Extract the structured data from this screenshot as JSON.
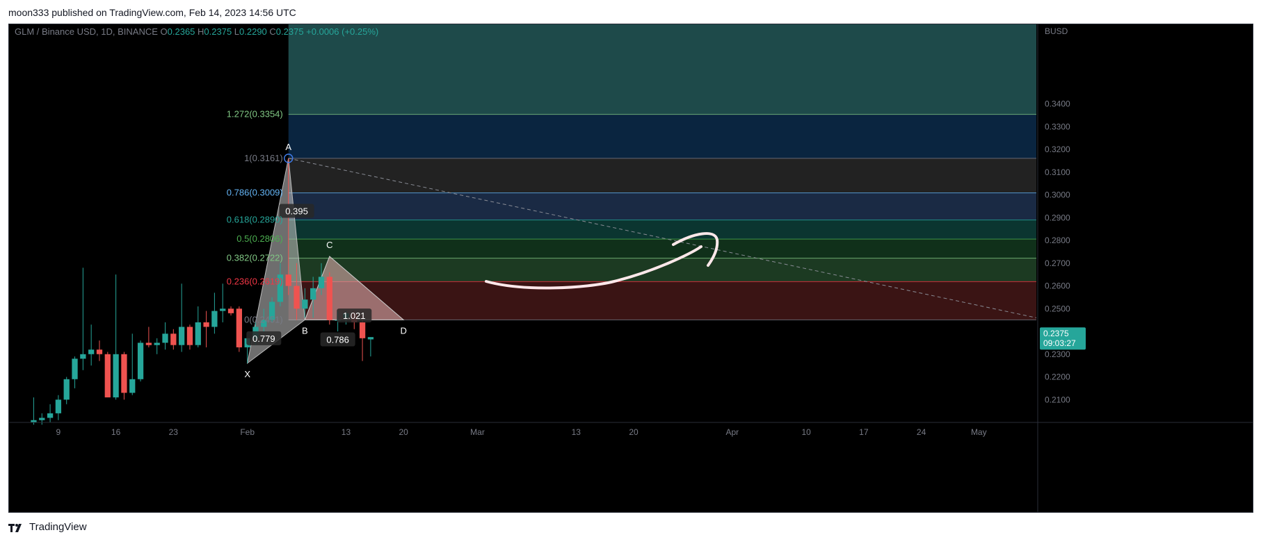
{
  "publish_line": "moon333 published on TradingView.com, Feb 14, 2023 14:56 UTC",
  "footer": {
    "brand": "TradingView",
    "logo_icon": "tradingview-logo-icon"
  },
  "colors": {
    "up": "#26a69a",
    "down": "#ef5350",
    "background": "#000000",
    "axis_text": "#787b86"
  },
  "chart_data": {
    "type": "candlestick",
    "header": {
      "symbol": "GLM / Binance USD, 1D, BINANCE",
      "open_label": "O",
      "open": "0.2365",
      "high_label": "H",
      "high": "0.2375",
      "low_label": "L",
      "low": "0.2290",
      "close_label": "C",
      "close": "0.2375",
      "change": "+0.0006 (+0.25%)"
    },
    "currency": "BUSD",
    "y_ticks": [
      "0.3400",
      "0.3300",
      "0.3200",
      "0.3100",
      "0.3000",
      "0.2900",
      "0.2800",
      "0.2700",
      "0.2600",
      "0.2500",
      "0.2400",
      "0.2300",
      "0.2200",
      "0.2100"
    ],
    "ylim": [
      0.2,
      0.375
    ],
    "x_ticks": [
      {
        "date": "2023-01-09",
        "label": "9"
      },
      {
        "date": "2023-01-16",
        "label": "16"
      },
      {
        "date": "2023-01-23",
        "label": "23"
      },
      {
        "date": "2023-02-01",
        "label": "Feb"
      },
      {
        "date": "2023-02-13",
        "label": "13"
      },
      {
        "date": "2023-02-20",
        "label": "20"
      },
      {
        "date": "2023-03-01",
        "label": "Mar"
      },
      {
        "date": "2023-03-13",
        "label": "13"
      },
      {
        "date": "2023-03-20",
        "label": "20"
      },
      {
        "date": "2023-04-01",
        "label": "Apr"
      },
      {
        "date": "2023-04-10",
        "label": "10"
      },
      {
        "date": "2023-04-17",
        "label": "17"
      },
      {
        "date": "2023-04-24",
        "label": "24"
      },
      {
        "date": "2023-05-01",
        "label": "May"
      }
    ],
    "xlim": [
      "2023-01-03",
      "2023-05-08"
    ],
    "candles": [
      {
        "date": "2023-01-06",
        "o": 0.2,
        "h": 0.211,
        "l": 0.199,
        "c": 0.201
      },
      {
        "date": "2023-01-07",
        "o": 0.201,
        "h": 0.204,
        "l": 0.199,
        "c": 0.202
      },
      {
        "date": "2023-01-08",
        "o": 0.202,
        "h": 0.208,
        "l": 0.2,
        "c": 0.204
      },
      {
        "date": "2023-01-09",
        "o": 0.204,
        "h": 0.212,
        "l": 0.201,
        "c": 0.21
      },
      {
        "date": "2023-01-10",
        "o": 0.21,
        "h": 0.22,
        "l": 0.208,
        "c": 0.219
      },
      {
        "date": "2023-01-11",
        "o": 0.219,
        "h": 0.229,
        "l": 0.215,
        "c": 0.228
      },
      {
        "date": "2023-01-12",
        "o": 0.228,
        "h": 0.268,
        "l": 0.223,
        "c": 0.23
      },
      {
        "date": "2023-01-13",
        "o": 0.23,
        "h": 0.243,
        "l": 0.225,
        "c": 0.232
      },
      {
        "date": "2023-01-14",
        "o": 0.232,
        "h": 0.236,
        "l": 0.227,
        "c": 0.23
      },
      {
        "date": "2023-01-15",
        "o": 0.23,
        "h": 0.231,
        "l": 0.211,
        "c": 0.211
      },
      {
        "date": "2023-01-16",
        "o": 0.211,
        "h": 0.265,
        "l": 0.21,
        "c": 0.23
      },
      {
        "date": "2023-01-17",
        "o": 0.23,
        "h": 0.231,
        "l": 0.21,
        "c": 0.213
      },
      {
        "date": "2023-01-18",
        "o": 0.213,
        "h": 0.239,
        "l": 0.212,
        "c": 0.219
      },
      {
        "date": "2023-01-19",
        "o": 0.219,
        "h": 0.236,
        "l": 0.218,
        "c": 0.235
      },
      {
        "date": "2023-01-20",
        "o": 0.235,
        "h": 0.242,
        "l": 0.233,
        "c": 0.234
      },
      {
        "date": "2023-01-21",
        "o": 0.234,
        "h": 0.237,
        "l": 0.23,
        "c": 0.235
      },
      {
        "date": "2023-01-22",
        "o": 0.235,
        "h": 0.244,
        "l": 0.232,
        "c": 0.239
      },
      {
        "date": "2023-01-23",
        "o": 0.239,
        "h": 0.241,
        "l": 0.232,
        "c": 0.234
      },
      {
        "date": "2023-01-24",
        "o": 0.234,
        "h": 0.261,
        "l": 0.231,
        "c": 0.242
      },
      {
        "date": "2023-01-25",
        "o": 0.242,
        "h": 0.243,
        "l": 0.232,
        "c": 0.234
      },
      {
        "date": "2023-01-26",
        "o": 0.234,
        "h": 0.251,
        "l": 0.233,
        "c": 0.244
      },
      {
        "date": "2023-01-27",
        "o": 0.244,
        "h": 0.249,
        "l": 0.233,
        "c": 0.242
      },
      {
        "date": "2023-01-28",
        "o": 0.242,
        "h": 0.257,
        "l": 0.239,
        "c": 0.249
      },
      {
        "date": "2023-01-29",
        "o": 0.249,
        "h": 0.261,
        "l": 0.244,
        "c": 0.25
      },
      {
        "date": "2023-01-30",
        "o": 0.25,
        "h": 0.251,
        "l": 0.247,
        "c": 0.248
      },
      {
        "date": "2023-01-31",
        "o": 0.25,
        "h": 0.251,
        "l": 0.231,
        "c": 0.233
      },
      {
        "date": "2023-02-01",
        "o": 0.233,
        "h": 0.237,
        "l": 0.226,
        "c": 0.237
      },
      {
        "date": "2023-02-02",
        "o": 0.237,
        "h": 0.244,
        "l": 0.234,
        "c": 0.242
      },
      {
        "date": "2023-02-03",
        "o": 0.242,
        "h": 0.25,
        "l": 0.24,
        "c": 0.245
      },
      {
        "date": "2023-02-04",
        "o": 0.245,
        "h": 0.255,
        "l": 0.244,
        "c": 0.253
      },
      {
        "date": "2023-02-05",
        "o": 0.253,
        "h": 0.27,
        "l": 0.251,
        "c": 0.265
      },
      {
        "date": "2023-02-06",
        "o": 0.265,
        "h": 0.3161,
        "l": 0.256,
        "c": 0.26
      },
      {
        "date": "2023-02-07",
        "o": 0.26,
        "h": 0.27,
        "l": 0.245,
        "c": 0.25
      },
      {
        "date": "2023-02-08",
        "o": 0.25,
        "h": 0.259,
        "l": 0.246,
        "c": 0.254
      },
      {
        "date": "2023-02-09",
        "o": 0.254,
        "h": 0.264,
        "l": 0.246,
        "c": 0.259
      },
      {
        "date": "2023-02-10",
        "o": 0.259,
        "h": 0.27,
        "l": 0.256,
        "c": 0.264
      },
      {
        "date": "2023-02-11",
        "o": 0.264,
        "h": 0.266,
        "l": 0.243,
        "c": 0.245
      },
      {
        "date": "2023-02-12",
        "o": 0.245,
        "h": 0.249,
        "l": 0.24,
        "c": 0.245
      },
      {
        "date": "2023-02-13",
        "o": 0.246,
        "h": 0.249,
        "l": 0.243,
        "c": 0.248
      },
      {
        "date": "2023-02-14",
        "o": 0.248,
        "h": 0.249,
        "l": 0.241,
        "c": 0.244
      },
      {
        "date": "2023-02-15",
        "o": 0.244,
        "h": 0.247,
        "l": 0.227,
        "c": 0.237
      },
      {
        "date": "2023-02-16",
        "o": 0.2365,
        "h": 0.2375,
        "l": 0.229,
        "c": 0.2375
      }
    ],
    "fib_levels": [
      {
        "label": "1.272(0.3354)",
        "value": 0.3354,
        "color": "#81c784"
      },
      {
        "label": "1(0.3161)",
        "value": 0.3161,
        "color": "#787b86"
      },
      {
        "label": "0.786(0.3009)",
        "value": 0.3009,
        "color": "#64b5f6"
      },
      {
        "label": "0.618(0.2890)",
        "value": 0.289,
        "color": "#26a69a"
      },
      {
        "label": "0.5(0.2806)",
        "value": 0.2806,
        "color": "#4caf50"
      },
      {
        "label": "0.382(0.2722)",
        "value": 0.2722,
        "color": "#81c784"
      },
      {
        "label": "0.236(0.2619)",
        "value": 0.2619,
        "color": "#f23645"
      },
      {
        "label": "0(0.2451)",
        "value": 0.2451,
        "color": "#787b86"
      }
    ],
    "fib_top": 0.375,
    "fib_start_date": "2023-02-06",
    "fib_bands": [
      "#1e4a4a",
      "#0a2540",
      "#222222",
      "#1a2a44",
      "#0b3530",
      "#10301a",
      "#1c3a22",
      "#3a1414"
    ],
    "pattern": {
      "points": [
        {
          "name": "X",
          "date": "2023-02-01",
          "value": 0.226
        },
        {
          "name": "A",
          "date": "2023-02-06",
          "value": 0.3161
        },
        {
          "name": "B",
          "date": "2023-02-08",
          "value": 0.2451
        },
        {
          "name": "C",
          "date": "2023-02-11",
          "value": 0.273
        },
        {
          "name": "D",
          "date": "2023-02-20",
          "value": 0.2451
        }
      ],
      "ratios": [
        {
          "label": "0.779",
          "date": "2023-02-03",
          "value": 0.237
        },
        {
          "label": "0.395",
          "date": "2023-02-07",
          "value": 0.293
        },
        {
          "label": "0.786",
          "date": "2023-02-12",
          "value": 0.2365
        },
        {
          "label": "1.021",
          "date": "2023-02-14",
          "value": 0.247
        }
      ]
    },
    "trendline": {
      "from_date": "2023-02-06",
      "from": 0.3161,
      "to_date": "2023-05-08",
      "to": 0.246
    },
    "last_price": {
      "price": "0.2375",
      "countdown": "09:03:27",
      "value": 0.2375
    }
  }
}
